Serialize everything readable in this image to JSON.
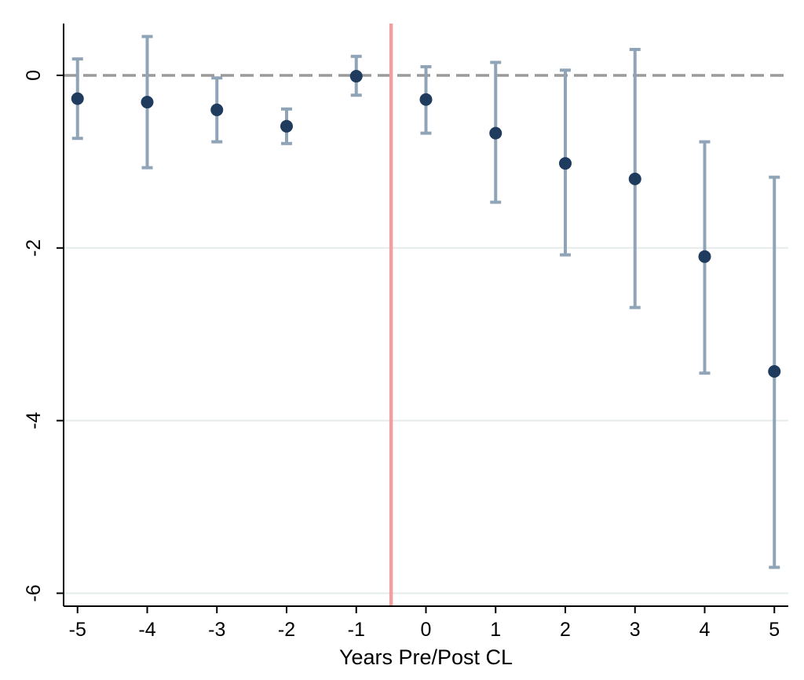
{
  "chart_data": {
    "type": "scatter",
    "title": "",
    "xlabel": "Years Pre/Post CL",
    "ylabel": "",
    "x": [
      -5,
      -4,
      -3,
      -2,
      -1,
      0,
      1,
      2,
      3,
      4,
      5
    ],
    "series": [
      {
        "estimate": [
          -0.27,
          -0.31,
          -0.4,
          -0.59,
          -0.01,
          -0.28,
          -0.67,
          -1.02,
          -1.2,
          -2.1,
          -3.43
        ],
        "ci_lower": [
          -0.73,
          -1.07,
          -0.77,
          -0.79,
          -0.23,
          -0.67,
          -1.47,
          -2.08,
          -2.69,
          -3.45,
          -5.7
        ],
        "ci_upper": [
          0.19,
          0.45,
          -0.03,
          -0.39,
          0.22,
          0.1,
          0.15,
          0.06,
          0.3,
          -0.77,
          -1.18
        ]
      }
    ],
    "x_ticks": [
      "-5",
      "-4",
      "-3",
      "-2",
      "-1",
      "0",
      "1",
      "2",
      "3",
      "4",
      "5"
    ],
    "y_ticks": [
      "0",
      "-2",
      "-4",
      "-6"
    ],
    "x_tick_values": [
      -5,
      -4,
      -3,
      -2,
      -1,
      0,
      1,
      2,
      3,
      4,
      5
    ],
    "y_tick_values": [
      0,
      -2,
      -4,
      -6
    ],
    "xlim": [
      -5.2,
      5.2
    ],
    "ylim": [
      -6.15,
      0.6
    ],
    "reference_lines": {
      "horizontal_y": 0,
      "horizontal_style": "dashed",
      "vertical_x": -0.5
    },
    "grid": "horizontal",
    "legend": "none",
    "colors": {
      "point": "#1f3b5e",
      "ci": "#90a4b8",
      "zero_line": "#9a9a9a",
      "treatment_line": "#f0a0a0",
      "grid": "#e6ecea"
    }
  }
}
